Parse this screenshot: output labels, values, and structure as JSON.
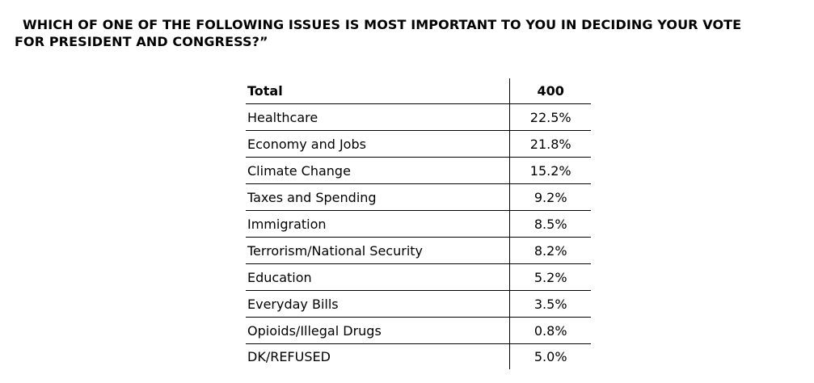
{
  "question": {
    "line1": "WHICH OF ONE OF THE FOLLOWING ISSUES IS MOST IMPORTANT TO YOU IN DECIDING YOUR VOTE",
    "line2": "FOR PRESIDENT AND CONGRESS?”"
  },
  "table": {
    "header": {
      "label": "Total",
      "value": "400"
    },
    "rows": [
      {
        "label": "Healthcare",
        "value": "22.5%"
      },
      {
        "label": "Economy and Jobs",
        "value": "21.8%"
      },
      {
        "label": "Climate Change",
        "value": "15.2%"
      },
      {
        "label": "Taxes and Spending",
        "value": "9.2%"
      },
      {
        "label": "Immigration",
        "value": "8.5%"
      },
      {
        "label": "Terrorism/National Security",
        "value": "8.2%"
      },
      {
        "label": "Education",
        "value": "5.2%"
      },
      {
        "label": "Everyday Bills",
        "value": "3.5%"
      },
      {
        "label": "Opioids/Illegal Drugs",
        "value": "0.8%"
      },
      {
        "label": "DK/REFUSED",
        "value": "5.0%"
      }
    ]
  }
}
